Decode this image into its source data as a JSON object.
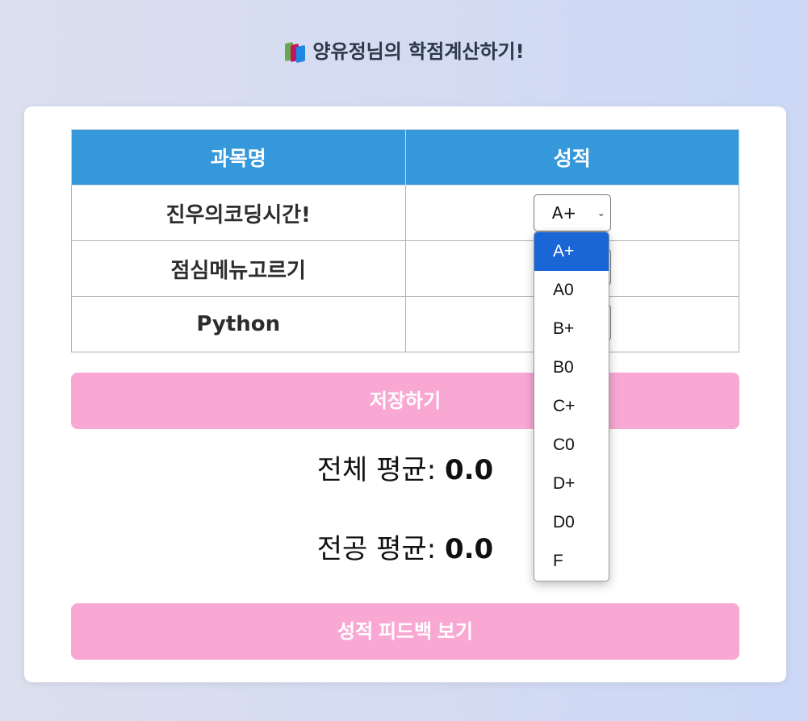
{
  "page": {
    "title": "양유정님의 학점계산하기!",
    "title_icon": "books-icon"
  },
  "table": {
    "headers": [
      "과목명",
      "성적"
    ],
    "rows": [
      {
        "subject": "진우의코딩시간!",
        "grade": "A+"
      },
      {
        "subject": "점심메뉴고르기",
        "grade": ""
      },
      {
        "subject": "Python",
        "grade": ""
      }
    ]
  },
  "buttons": {
    "save": "저장하기",
    "feedback": "성적 피드백 보기"
  },
  "averages": {
    "overall_label": "전체 평균:",
    "overall_value": "0.0",
    "major_label": "전공 평균:",
    "major_value": "0.0"
  },
  "dropdown": {
    "selected": "A+",
    "options": [
      "A+",
      "A0",
      "B+",
      "B0",
      "C+",
      "C0",
      "D+",
      "D0",
      "F"
    ]
  },
  "colors": {
    "header": "#3498db",
    "button": "#f9a8d4",
    "option_highlight": "#1a66d6"
  }
}
